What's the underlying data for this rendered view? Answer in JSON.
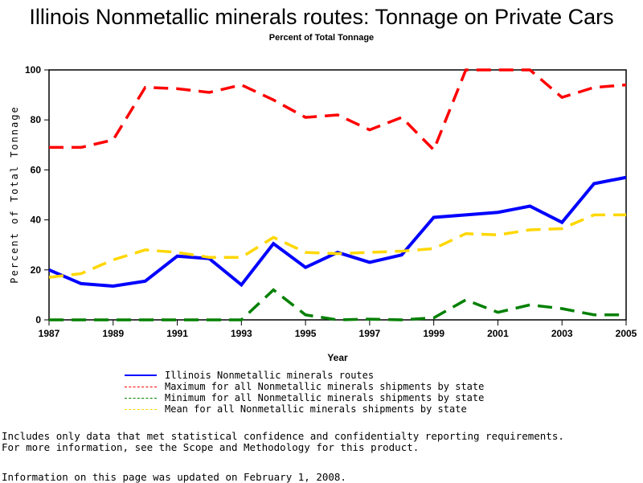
{
  "chart_data": {
    "type": "line",
    "title": "Illinois Nonmetallic minerals routes: Tonnage on Private Cars",
    "subtitle": "Percent of Total Tonnage",
    "xlabel": "Year",
    "ylabel": "Percent of Total Tonnage",
    "x": [
      1987,
      1988,
      1989,
      1990,
      1991,
      1992,
      1993,
      1994,
      1995,
      1996,
      1997,
      1998,
      1999,
      2000,
      2001,
      2002,
      2003,
      2004,
      2005
    ],
    "xticks": [
      "1987",
      "1989",
      "1991",
      "1993",
      "1995",
      "1997",
      "1999",
      "2001",
      "2003",
      "2005"
    ],
    "yticks": [
      "0",
      "20",
      "40",
      "60",
      "80",
      "100"
    ],
    "ylim": [
      0,
      100
    ],
    "series": [
      {
        "name": "Illinois Nonmetallic minerals routes",
        "color": "#0000ff",
        "style": "solid",
        "values": [
          20,
          14.5,
          13.5,
          15.5,
          25.5,
          24.5,
          14,
          30.5,
          21,
          27,
          23,
          26,
          41,
          42,
          43,
          45.5,
          39,
          54.5,
          57
        ]
      },
      {
        "name": "Maximum for all Nonmetallic minerals shipments by state",
        "color": "#ff0000",
        "style": "dashed",
        "values": [
          69,
          69,
          72,
          93,
          92.5,
          91,
          94,
          88,
          81,
          82,
          76,
          81,
          68,
          100,
          100,
          100,
          89,
          93,
          94
        ]
      },
      {
        "name": "Minimum for all Nonmetallic minerals shipments by state",
        "color": "#008000",
        "style": "dashed",
        "values": [
          0,
          0,
          0,
          0,
          0,
          0,
          0,
          12,
          2,
          0,
          0.3,
          0,
          0.8,
          8,
          3,
          6,
          4.5,
          2,
          2
        ]
      },
      {
        "name": "Mean for all Nonmetallic minerals shipments by state",
        "color": "#ffd700",
        "style": "dashed",
        "values": [
          17,
          18.5,
          24,
          28,
          27,
          25,
          25,
          33,
          27,
          26.5,
          27,
          27.5,
          28.5,
          34.5,
          34,
          36,
          36.5,
          42,
          42
        ]
      }
    ]
  },
  "notes": [
    "Includes only data that met statistical confidence and confidentialty reporting requirements.",
    "For more information, see the Scope and Methodology for this product."
  ],
  "updated": "Information on this page was updated on February 1, 2008."
}
